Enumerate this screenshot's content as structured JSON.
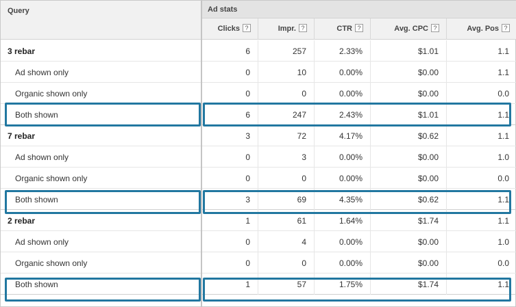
{
  "header": {
    "query_label": "Query",
    "group_label": "Ad stats",
    "help_glyph": "?",
    "columns": [
      "Clicks",
      "Impr.",
      "CTR",
      "Avg. CPC",
      "Avg. Pos"
    ]
  },
  "colors": {
    "highlight": "#2177a0"
  },
  "rows": [
    {
      "query": "3 rebar",
      "type": "parent",
      "clicks": "6",
      "impr": "257",
      "ctr": "2.33%",
      "cpc": "$1.01",
      "pos": "1.1"
    },
    {
      "query": "Ad shown only",
      "type": "child",
      "clicks": "0",
      "impr": "10",
      "ctr": "0.00%",
      "cpc": "$0.00",
      "pos": "1.1"
    },
    {
      "query": "Organic shown only",
      "type": "child",
      "clicks": "0",
      "impr": "0",
      "ctr": "0.00%",
      "cpc": "$0.00",
      "pos": "0.0"
    },
    {
      "query": "Both shown",
      "type": "child",
      "highlighted": true,
      "clicks": "6",
      "impr": "247",
      "ctr": "2.43%",
      "cpc": "$1.01",
      "pos": "1.1"
    },
    {
      "query": "7 rebar",
      "type": "parent",
      "clicks": "3",
      "impr": "72",
      "ctr": "4.17%",
      "cpc": "$0.62",
      "pos": "1.1"
    },
    {
      "query": "Ad shown only",
      "type": "child",
      "clicks": "0",
      "impr": "3",
      "ctr": "0.00%",
      "cpc": "$0.00",
      "pos": "1.0"
    },
    {
      "query": "Organic shown only",
      "type": "child",
      "clicks": "0",
      "impr": "0",
      "ctr": "0.00%",
      "cpc": "$0.00",
      "pos": "0.0"
    },
    {
      "query": "Both shown",
      "type": "child",
      "highlighted": true,
      "clicks": "3",
      "impr": "69",
      "ctr": "4.35%",
      "cpc": "$0.62",
      "pos": "1.1"
    },
    {
      "query": "2 rebar",
      "type": "parent",
      "clicks": "1",
      "impr": "61",
      "ctr": "1.64%",
      "cpc": "$1.74",
      "pos": "1.1"
    },
    {
      "query": "Ad shown only",
      "type": "child",
      "clicks": "0",
      "impr": "4",
      "ctr": "0.00%",
      "cpc": "$0.00",
      "pos": "1.0"
    },
    {
      "query": "Organic shown only",
      "type": "child",
      "clicks": "0",
      "impr": "0",
      "ctr": "0.00%",
      "cpc": "$0.00",
      "pos": "0.0"
    },
    {
      "query": "Both shown",
      "type": "child",
      "highlighted": true,
      "clicks": "1",
      "impr": "57",
      "ctr": "1.75%",
      "cpc": "$1.74",
      "pos": "1.1"
    }
  ]
}
